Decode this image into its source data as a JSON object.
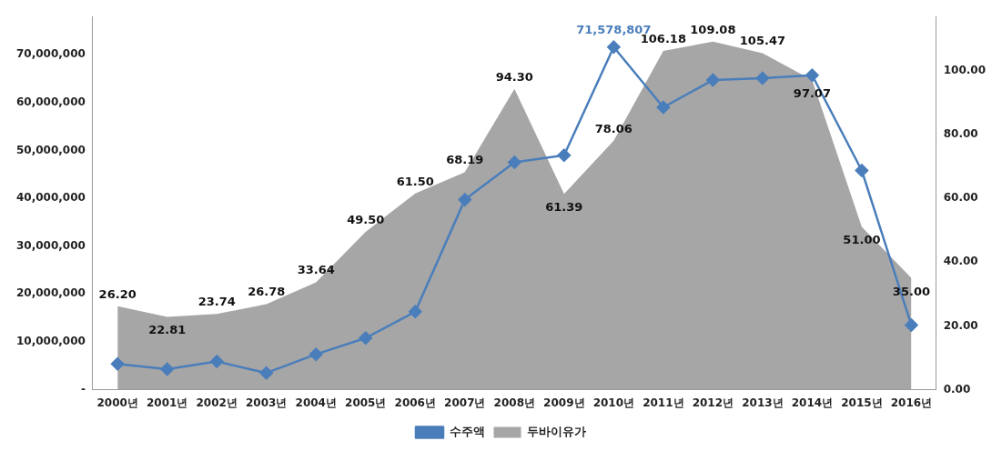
{
  "chart_data": {
    "type": "line",
    "categories": [
      "2000년",
      "2001년",
      "2002년",
      "2003년",
      "2004년",
      "2005년",
      "2006년",
      "2007년",
      "2008년",
      "2009년",
      "2010년",
      "2011년",
      "2012년",
      "2013년",
      "2014년",
      "2015년",
      "2016년"
    ],
    "series": [
      {
        "name": "두바이유가",
        "type": "area",
        "axis": "y2",
        "color": "#a6a6a6",
        "values": [
          26.2,
          22.81,
          23.74,
          26.78,
          33.64,
          49.5,
          61.5,
          68.19,
          94.3,
          61.39,
          78.06,
          106.18,
          109.08,
          105.47,
          97.07,
          51.0,
          35.0
        ],
        "value_labels": [
          "26.20",
          "22.81",
          "23.74",
          "26.78",
          "33.64",
          "49.50",
          "61.50",
          "68.19",
          "94.30",
          "61.39",
          "78.06",
          "106.18",
          "109.08",
          "105.47",
          "97.07",
          "51.00",
          "35.00"
        ]
      },
      {
        "name": "수주액",
        "color": "#4a7ebb",
        "marker": "diamond",
        "values": [
          5400000,
          4300000,
          5900000,
          3500000,
          7400000,
          10800000,
          16300000,
          39700000,
          47500000,
          49000000,
          71578807,
          59000000,
          64700000,
          65100000,
          65700000,
          45800000,
          13500000
        ],
        "value_labels": [
          null,
          null,
          null,
          null,
          null,
          null,
          null,
          null,
          null,
          null,
          "71,578,807",
          null,
          null,
          null,
          null,
          null,
          null
        ]
      }
    ],
    "ylim": [
      0,
      78000000
    ],
    "yticks": [
      {
        "value": 0,
        "label": "-"
      },
      {
        "value": 10000000,
        "label": "10,000,000"
      },
      {
        "value": 20000000,
        "label": "20,000,000"
      },
      {
        "value": 30000000,
        "label": "30,000,000"
      },
      {
        "value": 40000000,
        "label": "40,000,000"
      },
      {
        "value": 50000000,
        "label": "50,000,000"
      },
      {
        "value": 60000000,
        "label": "60,000,000"
      },
      {
        "value": 70000000,
        "label": "70,000,000"
      }
    ],
    "y2lim": [
      0,
      117
    ],
    "y2ticks": [
      {
        "value": 0,
        "label": "0.00"
      },
      {
        "value": 20,
        "label": "20.00"
      },
      {
        "value": 40,
        "label": "40.00"
      },
      {
        "value": 60,
        "label": "60.00"
      },
      {
        "value": 80,
        "label": "80.00"
      },
      {
        "value": 100,
        "label": "100.00"
      }
    ],
    "grid": false,
    "legend": "bottom"
  }
}
